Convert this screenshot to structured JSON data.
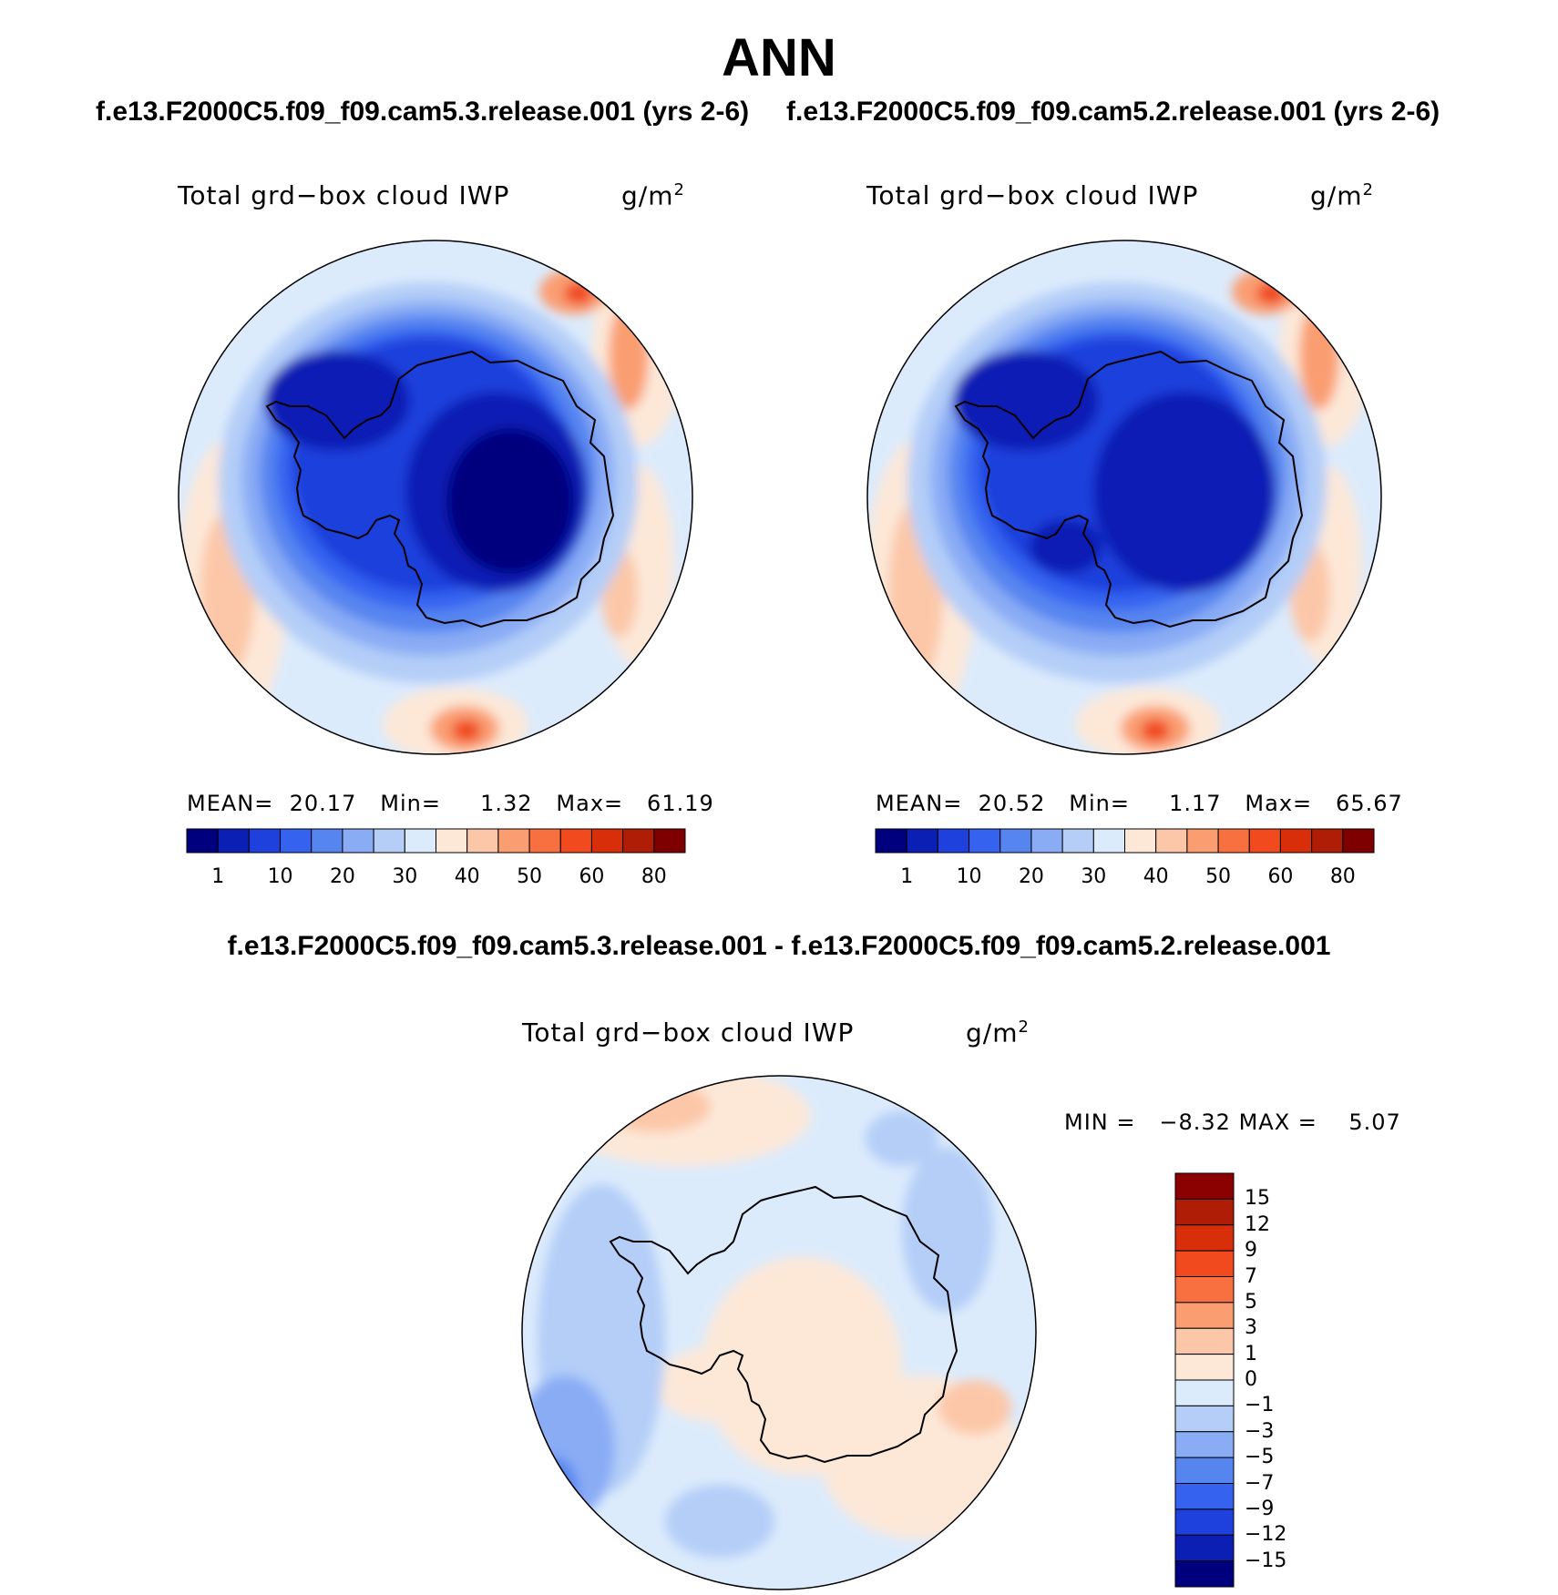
{
  "page": {
    "title": "ANN"
  },
  "cases": {
    "left": "f.e13.F2000C5.f09_f09.cam5.3.release.001 (yrs 2-6)",
    "right": "f.e13.F2000C5.f09_f09.cam5.2.release.001 (yrs 2-6)",
    "diff": "f.e13.F2000C5.f09_f09.cam5.3.release.001 - f.e13.F2000C5.f09_f09.cam5.2.release.001"
  },
  "chart_data": [
    {
      "type": "heatmap",
      "projection": "south polar stereographic",
      "title": "Total grd−box cloud IWP",
      "units": "g/m",
      "units_superscript": "2",
      "mean_label": "MEAN=",
      "mean": "20.17",
      "min_label": "Min=",
      "min": "1.32",
      "max_label": "Max=",
      "max": "61.19",
      "colorbar_ticks": [
        "1",
        "10",
        "20",
        "30",
        "40",
        "50",
        "60",
        "80"
      ],
      "colors": [
        "#00007f",
        "#0b1fb4",
        "#1e40dc",
        "#3563f0",
        "#5685f0",
        "#8aacf5",
        "#b4cef8",
        "#dcebfc",
        "#fde8d8",
        "#fcc7a8",
        "#fa9e72",
        "#f8703f",
        "#f04a1e",
        "#d82f0a",
        "#b01d06",
        "#7f0000"
      ]
    },
    {
      "type": "heatmap",
      "projection": "south polar stereographic",
      "title": "Total grd−box cloud IWP",
      "units": "g/m",
      "units_superscript": "2",
      "mean_label": "MEAN=",
      "mean": "20.52",
      "min_label": "Min=",
      "min": "1.17",
      "max_label": "Max=",
      "max": "65.67",
      "colorbar_ticks": [
        "1",
        "10",
        "20",
        "30",
        "40",
        "50",
        "60",
        "80"
      ],
      "colors": [
        "#00007f",
        "#0b1fb4",
        "#1e40dc",
        "#3563f0",
        "#5685f0",
        "#8aacf5",
        "#b4cef8",
        "#dcebfc",
        "#fde8d8",
        "#fcc7a8",
        "#fa9e72",
        "#f8703f",
        "#f04a1e",
        "#d82f0a",
        "#b01d06",
        "#7f0000"
      ]
    },
    {
      "type": "heatmap",
      "projection": "south polar stereographic",
      "title": "Total grd−box cloud IWP",
      "units": "g/m",
      "units_superscript": "2",
      "min_label": "MIN =",
      "min": "−8.32",
      "max_label": "MAX =",
      "max": "5.07",
      "colorbar_ticks": [
        "15",
        "12",
        "9",
        "7",
        "5",
        "3",
        "1",
        "0",
        "−1",
        "−3",
        "−5",
        "−7",
        "−9",
        "−12",
        "−15"
      ],
      "colors": [
        "#8b0000",
        "#b01d06",
        "#d82f0a",
        "#f04a1e",
        "#f8703f",
        "#fa9e72",
        "#fcc7a8",
        "#fde8d8",
        "#dcebfc",
        "#b4cef8",
        "#8aacf5",
        "#5685f0",
        "#3563f0",
        "#1e40dc",
        "#0b1fb4",
        "#00007f"
      ]
    }
  ]
}
